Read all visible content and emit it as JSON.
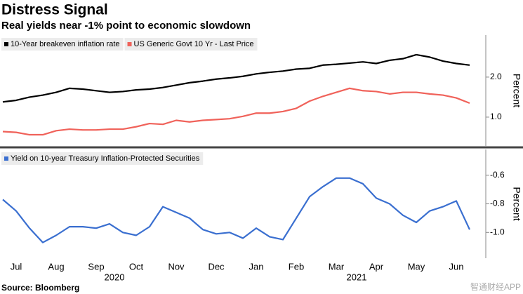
{
  "title": "Distress Signal",
  "subtitle": "Real yields near -1% point to economic slowdown",
  "source": "Source: Bloomberg",
  "watermark": "智通财经APP",
  "years": [
    "2020",
    "2021"
  ],
  "chart_data": [
    {
      "type": "line",
      "ylabel": "Percent",
      "ylim": [
        0.28,
        3.05
      ],
      "yticks": [
        {
          "value": 1,
          "label": "1.0"
        },
        {
          "value": 2,
          "label": "2.0"
        }
      ],
      "legend": "top-left",
      "series": [
        {
          "name": "10-Year breakeven inflation rate",
          "color": "#000000",
          "values": [
            1.38,
            1.42,
            1.5,
            1.55,
            1.62,
            1.72,
            1.7,
            1.66,
            1.62,
            1.64,
            1.68,
            1.7,
            1.74,
            1.8,
            1.86,
            1.9,
            1.95,
            1.98,
            2.02,
            2.08,
            2.12,
            2.15,
            2.2,
            2.22,
            2.3,
            2.32,
            2.35,
            2.38,
            2.34,
            2.42,
            2.46,
            2.56,
            2.5,
            2.4,
            2.34,
            2.3
          ]
        },
        {
          "name": "US Generic Govt 10 Yr - Last Price",
          "color": "#f0625a",
          "values": [
            0.64,
            0.62,
            0.56,
            0.56,
            0.66,
            0.7,
            0.68,
            0.68,
            0.7,
            0.7,
            0.76,
            0.84,
            0.82,
            0.92,
            0.88,
            0.92,
            0.94,
            0.96,
            1.02,
            1.1,
            1.1,
            1.14,
            1.22,
            1.4,
            1.52,
            1.62,
            1.72,
            1.66,
            1.64,
            1.58,
            1.62,
            1.62,
            1.58,
            1.55,
            1.48,
            1.35
          ]
        }
      ]
    },
    {
      "type": "line",
      "ylabel": "Percent",
      "ylim": [
        -1.18,
        -0.42
      ],
      "yticks": [
        {
          "value": -1,
          "label": "-1.0"
        },
        -0.8,
        -0.6
      ],
      "legend": "top-left",
      "categories": [
        null,
        "Jul",
        null,
        null,
        "Aug",
        null,
        null,
        "Sep",
        null,
        null,
        "Oct",
        null,
        null,
        "Nov",
        null,
        null,
        "Dec",
        null,
        null,
        "Jan",
        null,
        null,
        "Feb",
        null,
        null,
        "Mar",
        null,
        null,
        "Apr",
        null,
        null,
        "May",
        null,
        null,
        "Jun",
        null
      ],
      "series": [
        {
          "name": "Yield on 10-year Treasury Inflation-Protected Securities",
          "color": "#3a6fd0",
          "values": [
            -0.77,
            -0.85,
            -0.97,
            -1.07,
            -1.02,
            -0.96,
            -0.96,
            -0.97,
            -0.94,
            -1.0,
            -1.02,
            -0.96,
            -0.82,
            -0.86,
            -0.9,
            -0.98,
            -1.01,
            -1.0,
            -1.04,
            -0.97,
            -1.03,
            -1.05,
            -0.9,
            -0.75,
            -0.68,
            -0.62,
            -0.62,
            -0.66,
            -0.76,
            -0.8,
            -0.88,
            -0.93,
            -0.85,
            -0.82,
            -0.78,
            -0.98
          ]
        }
      ]
    }
  ]
}
